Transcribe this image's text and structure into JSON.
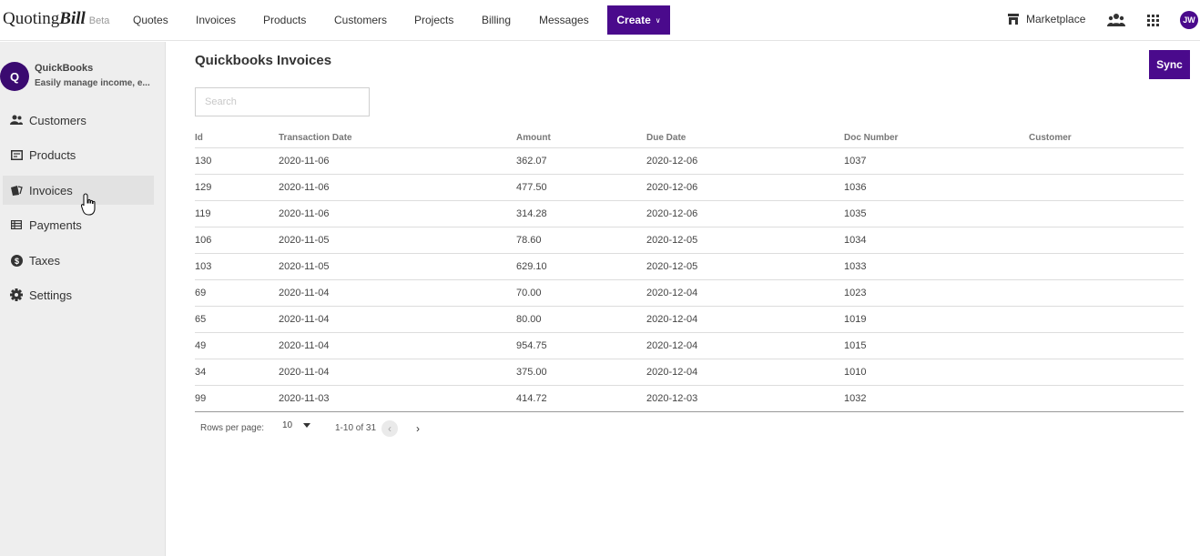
{
  "brand": {
    "name_a": "Quoting",
    "name_b": "Bill",
    "badge": "Beta",
    "accent": "#4a0a8c"
  },
  "topnav": {
    "items": [
      "Quotes",
      "Invoices",
      "Products",
      "Customers",
      "Projects",
      "Billing",
      "Messages"
    ],
    "create_label": "Create",
    "marketplace_label": "Marketplace",
    "user_initials": "JW"
  },
  "sidebar": {
    "app_initial": "Q",
    "app_name": "QuickBooks",
    "app_description": "Easily manage income, e...",
    "items": [
      {
        "label": "Customers",
        "icon": "people-icon"
      },
      {
        "label": "Products",
        "icon": "product-icon"
      },
      {
        "label": "Invoices",
        "icon": "invoice-icon",
        "active": true
      },
      {
        "label": "Payments",
        "icon": "payments-icon"
      },
      {
        "label": "Taxes",
        "icon": "dollar-icon"
      },
      {
        "label": "Settings",
        "icon": "gear-icon"
      }
    ]
  },
  "main": {
    "title": "Quickbooks Invoices",
    "sync_label": "Sync",
    "search_placeholder": "Search",
    "table": {
      "columns": [
        "Id",
        "Transaction Date",
        "Amount",
        "Due Date",
        "Doc Number",
        "Customer"
      ],
      "rows": [
        [
          "130",
          "2020-11-06",
          "362.07",
          "2020-12-06",
          "1037",
          ""
        ],
        [
          "129",
          "2020-11-06",
          "477.50",
          "2020-12-06",
          "1036",
          ""
        ],
        [
          "119",
          "2020-11-06",
          "314.28",
          "2020-12-06",
          "1035",
          ""
        ],
        [
          "106",
          "2020-11-05",
          "78.60",
          "2020-12-05",
          "1034",
          ""
        ],
        [
          "103",
          "2020-11-05",
          "629.10",
          "2020-12-05",
          "1033",
          ""
        ],
        [
          "69",
          "2020-11-04",
          "70.00",
          "2020-12-04",
          "1023",
          ""
        ],
        [
          "65",
          "2020-11-04",
          "80.00",
          "2020-12-04",
          "1019",
          ""
        ],
        [
          "49",
          "2020-11-04",
          "954.75",
          "2020-12-04",
          "1015",
          ""
        ],
        [
          "34",
          "2020-11-04",
          "375.00",
          "2020-12-04",
          "1010",
          ""
        ],
        [
          "99",
          "2020-11-03",
          "414.72",
          "2020-12-03",
          "1032",
          ""
        ]
      ]
    },
    "pagination": {
      "rows_per_page_label": "Rows per page:",
      "rows_per_page": "10",
      "range": "1-10 of 31"
    }
  }
}
